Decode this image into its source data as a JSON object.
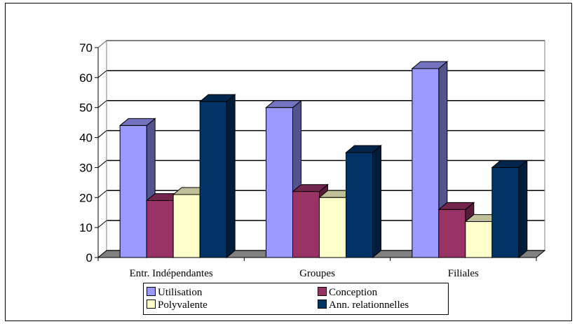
{
  "chart_data": {
    "type": "bar",
    "style": "3d-clustered-column",
    "categories": [
      "Entr. Indépendantes",
      "Groupes",
      "Filiales"
    ],
    "series": [
      {
        "name": "Utilisation",
        "values": [
          44,
          50,
          63
        ],
        "color": "#9999ff"
      },
      {
        "name": "Conception",
        "values": [
          19,
          22,
          16
        ],
        "color": "#993366"
      },
      {
        "name": "Polyvalente",
        "values": [
          21,
          20,
          12
        ],
        "color": "#ffffcc"
      },
      {
        "name": "Ann. relationnelles",
        "values": [
          52,
          35,
          30
        ],
        "color": "#003366"
      }
    ],
    "yticks": [
      "0",
      "10",
      "20",
      "30",
      "40",
      "50",
      "60",
      "70"
    ],
    "ylim": [
      0,
      70
    ],
    "grid": true,
    "legend_position": "bottom"
  }
}
